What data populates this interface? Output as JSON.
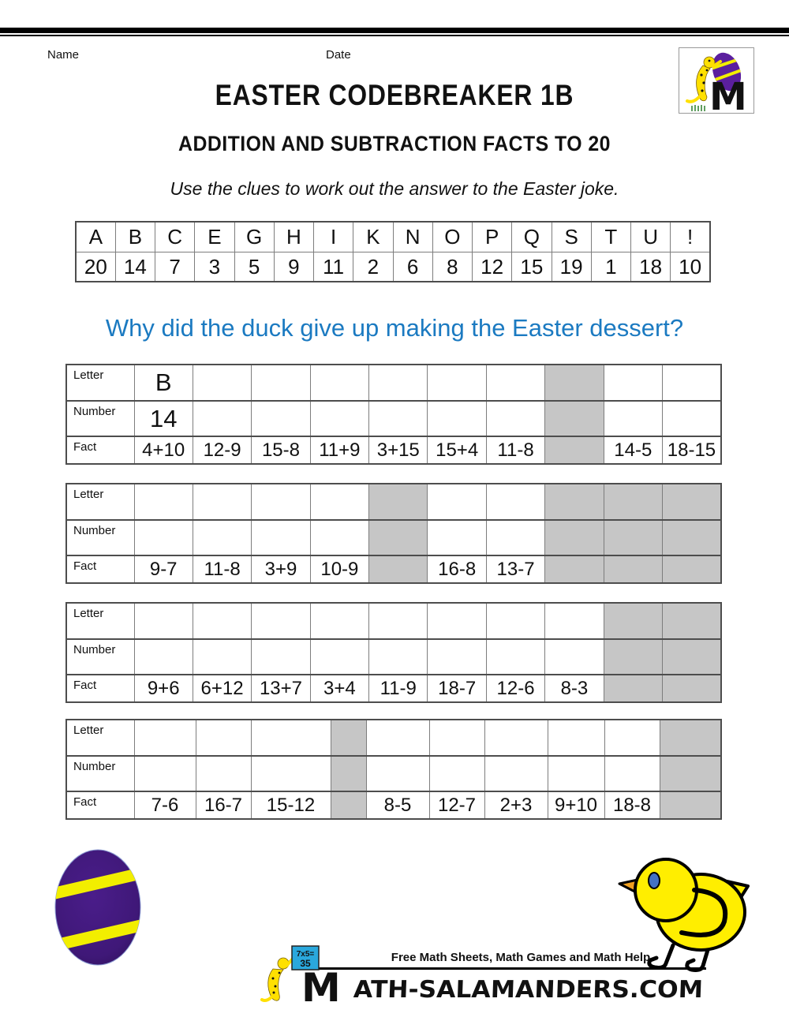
{
  "header": {
    "name_label": "Name",
    "date_label": "Date",
    "title": "EASTER CODEBREAKER 1B",
    "subtitle": "ADDITION AND SUBTRACTION FACTS TO 20",
    "instruction": "Use the clues to work out the answer to the Easter joke."
  },
  "code_key": {
    "letters": [
      "A",
      "B",
      "C",
      "E",
      "G",
      "H",
      "I",
      "K",
      "N",
      "O",
      "P",
      "Q",
      "S",
      "T",
      "U",
      "!"
    ],
    "numbers": [
      "20",
      "14",
      "7",
      "3",
      "5",
      "9",
      "11",
      "2",
      "6",
      "8",
      "12",
      "15",
      "19",
      "1",
      "18",
      "10"
    ]
  },
  "question": "Why did the duck give up making the Easter dessert?",
  "row_labels": {
    "letter": "Letter",
    "number": "Number",
    "fact": "Fact"
  },
  "answer_tables": [
    {
      "letter": [
        "B",
        "",
        "",
        "",
        "",
        "",
        "",
        "",
        "",
        ""
      ],
      "number": [
        "14",
        "",
        "",
        "",
        "",
        "",
        "",
        "",
        "",
        ""
      ],
      "fact": [
        "4+10",
        "12-9",
        "15-8",
        "11+9",
        "3+15",
        "15+4",
        "11-8",
        "",
        "14-5",
        "18-15"
      ],
      "gray_columns": [
        7
      ]
    },
    {
      "letter": [
        "",
        "",
        "",
        "",
        "",
        "",
        "",
        "",
        "",
        ""
      ],
      "number": [
        "",
        "",
        "",
        "",
        "",
        "",
        "",
        "",
        "",
        ""
      ],
      "fact": [
        "9-7",
        "11-8",
        "3+9",
        "10-9",
        "",
        "16-8",
        "13-7",
        "",
        "",
        ""
      ],
      "gray_columns": [
        4,
        7,
        8,
        9
      ]
    },
    {
      "letter": [
        "",
        "",
        "",
        "",
        "",
        "",
        "",
        "",
        "",
        ""
      ],
      "number": [
        "",
        "",
        "",
        "",
        "",
        "",
        "",
        "",
        "",
        ""
      ],
      "fact": [
        "9+6",
        "6+12",
        "13+7",
        "3+4",
        "11-9",
        "18-7",
        "12-6",
        "8-3",
        "",
        ""
      ],
      "gray_columns": [
        8,
        9
      ]
    },
    {
      "letter": [
        "",
        "",
        "",
        "",
        "",
        "",
        "",
        "",
        "",
        ""
      ],
      "number": [
        "",
        "",
        "",
        "",
        "",
        "",
        "",
        "",
        "",
        ""
      ],
      "fact": [
        "7-6",
        "16-7",
        "15-12",
        "",
        "8-5",
        "12-7",
        "2+3",
        "9+10",
        "18-8",
        ""
      ],
      "gray_columns": [
        3,
        9
      ]
    }
  ],
  "footer": {
    "tagline": "Free Math Sheets, Math Games and Math Help",
    "wordmark_m": "M",
    "wordmark": "ATH-SALAMANDERS.COM",
    "sign_line1": "7x5=",
    "sign_line2": "35"
  },
  "colors": {
    "question_blue": "#1b7ac1",
    "blocked_gray": "#c6c6c6",
    "egg_purple": "#3f1878",
    "stripe_yellow": "#f2ee00",
    "chick_yellow": "#ffee00",
    "beak_orange": "#f0a020",
    "eye_blue": "#4472c4",
    "sign_blue": "#2aa8dd"
  }
}
